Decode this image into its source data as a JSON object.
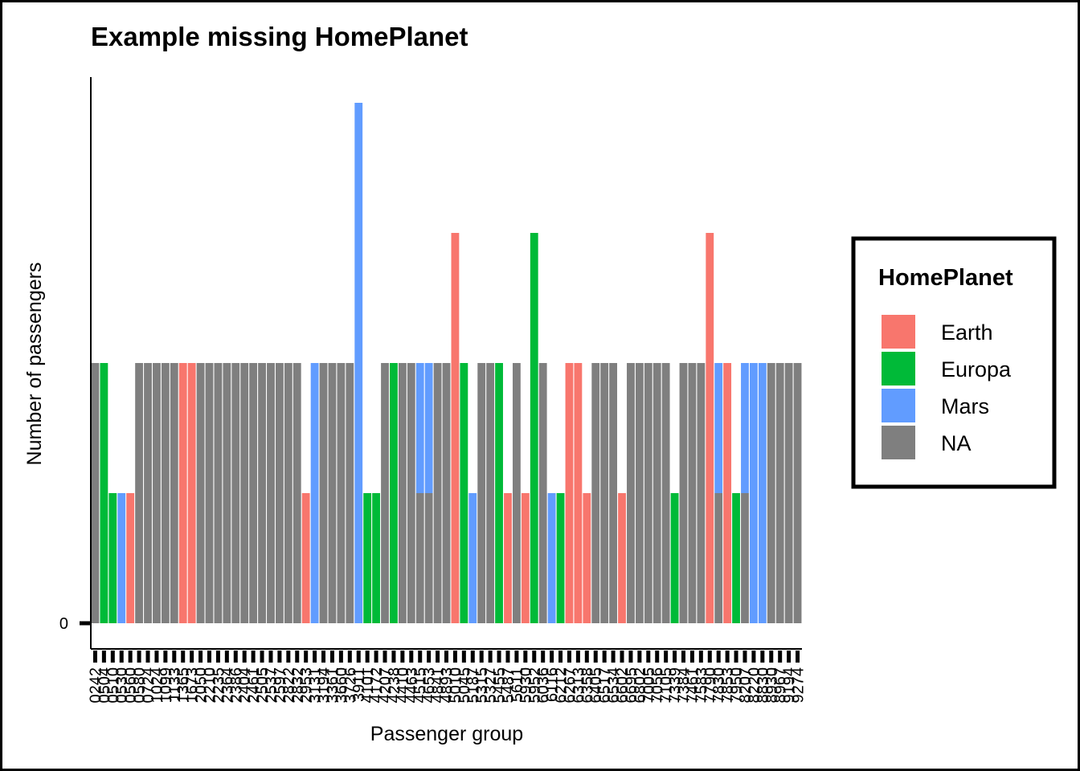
{
  "chart_data": {
    "type": "bar",
    "stacked": true,
    "title": "Example missing HomePlanet",
    "xlabel": "Passenger group",
    "ylabel": "Number of passengers",
    "y_tick_labels": [
      "0"
    ],
    "ylim": [
      0,
      5.5
    ],
    "grid": false,
    "legend": {
      "title": "HomePlanet",
      "placement": "right",
      "entries": [
        {
          "name": "Earth",
          "color": "#F8766D"
        },
        {
          "name": "Europa",
          "color": "#00BA38"
        },
        {
          "name": "Mars",
          "color": "#619CFF"
        },
        {
          "name": "NA",
          "color": "#7F7F7F"
        }
      ]
    },
    "categories": [
      "0242",
      "0504",
      "0510",
      "0530",
      "0560",
      "0580",
      "0724",
      "1024",
      "1099",
      "1133",
      "1365",
      "1673",
      "2050",
      "2210",
      "2235",
      "2364",
      "2386",
      "2404",
      "2461",
      "2505",
      "2537",
      "2597",
      "2822",
      "2832",
      "2953",
      "3131",
      "3194",
      "3361",
      "3660",
      "3726",
      "3911",
      "4101",
      "4172",
      "4207",
      "4238",
      "4410",
      "4463",
      "4515",
      "4653",
      "4841",
      "4893",
      "5010",
      "5045",
      "5187",
      "5315",
      "5327",
      "5455",
      "5487",
      "5611",
      "5930",
      "5952",
      "6036",
      "6116",
      "6212",
      "6267",
      "6313",
      "6358",
      "6405",
      "6517",
      "6534",
      "6602",
      "6695",
      "6802",
      "7005",
      "7056",
      "7105",
      "7339",
      "7384",
      "7461",
      "7583",
      "7790",
      "7830",
      "7853",
      "7950",
      "8207",
      "8220",
      "8830",
      "8930",
      "8967",
      "9194",
      "9274"
    ],
    "series": [
      {
        "name": "Earth",
        "color": "#F8766D",
        "values": [
          0,
          0,
          0,
          0,
          1,
          0,
          0,
          0,
          0,
          0,
          2,
          2,
          0,
          0,
          0,
          0,
          0,
          0,
          0,
          0,
          0,
          0,
          0,
          0,
          1,
          0,
          0,
          0,
          0,
          0,
          0,
          0,
          0,
          0,
          0,
          0,
          0,
          0,
          0,
          0,
          0,
          3,
          0,
          0,
          0,
          0,
          0,
          1,
          0,
          1,
          0,
          0,
          0,
          0,
          2,
          2,
          1,
          0,
          0,
          0,
          1,
          0,
          0,
          0,
          0,
          0,
          0,
          0,
          0,
          0,
          3,
          0,
          2,
          0,
          0,
          0,
          0,
          0,
          0,
          0,
          0
        ]
      },
      {
        "name": "Europa",
        "color": "#00BA38",
        "values": [
          0,
          2,
          1,
          0,
          0,
          0,
          0,
          0,
          0,
          0,
          0,
          0,
          0,
          0,
          0,
          0,
          0,
          0,
          0,
          0,
          0,
          0,
          0,
          0,
          0,
          0,
          0,
          0,
          0,
          0,
          0,
          1,
          1,
          0,
          2,
          0,
          0,
          0,
          0,
          0,
          0,
          0,
          2,
          0,
          0,
          0,
          2,
          0,
          0,
          0,
          3,
          0,
          0,
          1,
          0,
          0,
          0,
          0,
          0,
          0,
          0,
          0,
          0,
          0,
          0,
          0,
          1,
          0,
          0,
          0,
          0,
          0,
          0,
          1,
          0,
          0,
          0,
          0,
          0,
          0,
          0
        ]
      },
      {
        "name": "Mars",
        "color": "#619CFF",
        "values": [
          0,
          0,
          0,
          1,
          0,
          0,
          0,
          0,
          0,
          0,
          0,
          0,
          0,
          0,
          0,
          0,
          0,
          0,
          0,
          0,
          0,
          0,
          0,
          0,
          0,
          2,
          0,
          0,
          0,
          0,
          4,
          0,
          0,
          0,
          0,
          0,
          0,
          1,
          1,
          0,
          0,
          0,
          0,
          1,
          0,
          0,
          0,
          0,
          0,
          0,
          0,
          0,
          1,
          0,
          0,
          0,
          0,
          0,
          0,
          0,
          0,
          0,
          0,
          0,
          0,
          0,
          0,
          0,
          0,
          0,
          0,
          1,
          0,
          0,
          1,
          2,
          2,
          0,
          0,
          0,
          0
        ]
      },
      {
        "name": "NA",
        "color": "#7F7F7F",
        "values": [
          2,
          0,
          0,
          0,
          0,
          2,
          2,
          2,
          2,
          2,
          0,
          0,
          2,
          2,
          2,
          2,
          2,
          2,
          2,
          2,
          2,
          2,
          2,
          2,
          0,
          0,
          2,
          2,
          2,
          2,
          0,
          0,
          0,
          2,
          0,
          2,
          2,
          1,
          1,
          2,
          2,
          0,
          0,
          0,
          2,
          2,
          0,
          0,
          2,
          0,
          0,
          2,
          0,
          0,
          0,
          0,
          0,
          2,
          2,
          2,
          0,
          2,
          2,
          2,
          2,
          2,
          0,
          2,
          2,
          2,
          0,
          1,
          0,
          0,
          1,
          0,
          0,
          2,
          2,
          2,
          2
        ]
      }
    ]
  }
}
